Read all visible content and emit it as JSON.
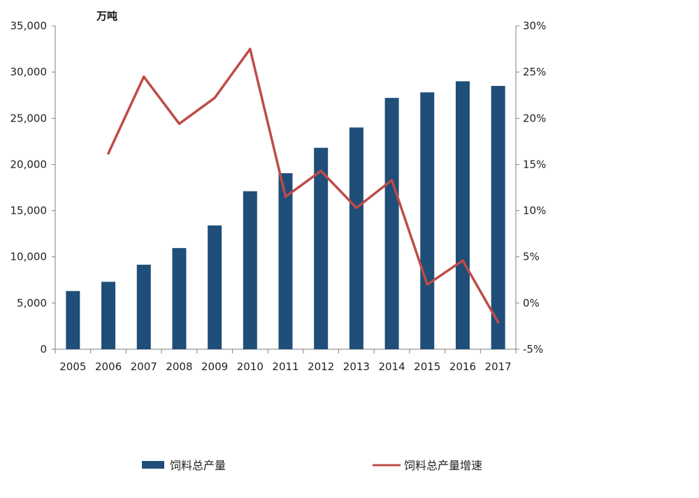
{
  "chart_data": {
    "type": "bar",
    "y_unit_label": "万吨",
    "categories": [
      "2005",
      "2006",
      "2007",
      "2008",
      "2009",
      "2010",
      "2011",
      "2012",
      "2013",
      "2014",
      "2015",
      "2016",
      "2017"
    ],
    "series": [
      {
        "name": "饲料总产量",
        "type": "bar",
        "axis": "left",
        "color": "#1f4e79",
        "values": [
          6300,
          7300,
          9150,
          10950,
          13400,
          17100,
          19050,
          21800,
          24000,
          27200,
          27800,
          29000,
          28500
        ]
      },
      {
        "name": "饲料总产量增速",
        "type": "line",
        "axis": "right",
        "color": "#be4b48",
        "values": [
          null,
          16.2,
          24.5,
          19.4,
          22.2,
          27.5,
          11.5,
          14.3,
          10.3,
          13.3,
          2.0,
          4.6,
          -2.1
        ]
      }
    ],
    "y_left": {
      "ylim": [
        0,
        35000
      ],
      "ticks": [
        0,
        5000,
        10000,
        15000,
        20000,
        25000,
        30000,
        35000
      ],
      "tick_labels": [
        "0",
        "5,000",
        "10,000",
        "15,000",
        "20,000",
        "25,000",
        "30,000",
        "35,000"
      ]
    },
    "y_right": {
      "ylim": [
        -5,
        30
      ],
      "ticks": [
        -5,
        0,
        5,
        10,
        15,
        20,
        25,
        30
      ],
      "tick_labels": [
        "-5%",
        "0%",
        "5%",
        "10%",
        "15%",
        "20%",
        "25%",
        "30%"
      ]
    },
    "grid": false,
    "legend_position": "bottom"
  }
}
